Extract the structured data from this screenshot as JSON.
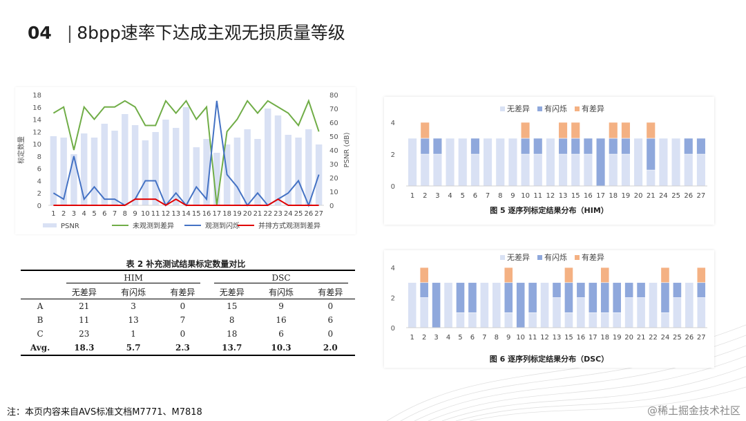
{
  "title": {
    "number": "04",
    "separator": "|",
    "text": "8bpp速率下达成主观无损质量等级"
  },
  "footnote": "注：本页内容来自AVS标准文档M7771、M7818",
  "watermark": "@稀土掘金技术社区",
  "colors": {
    "psnr_bar": "#d9e1f4",
    "no_diff": "#d9e1f4",
    "flicker": "#8fa8dc",
    "diff": "#f4b183",
    "green": "#70ad47",
    "blue": "#4472c4",
    "red": "#e00000"
  },
  "chart_data": [
    {
      "type": "bar+line",
      "categories": [
        "1",
        "2",
        "3",
        "4",
        "5",
        "6",
        "7",
        "8",
        "9",
        "10",
        "11",
        "12",
        "13",
        "14",
        "15",
        "16",
        "17",
        "18",
        "19",
        "20",
        "21",
        "22",
        "23",
        "24",
        "25",
        "26",
        "27"
      ],
      "ylabel": "标定数量",
      "y2label": "PSNR (dB)",
      "ylim": [
        0,
        18
      ],
      "yticks": [
        "0",
        "2",
        "4",
        "6",
        "8",
        "10",
        "12",
        "14",
        "16",
        "18"
      ],
      "y2lim": [
        0,
        80
      ],
      "y2ticks": [
        "0",
        "10",
        "20",
        "30",
        "40",
        "50",
        "60",
        "70",
        "80"
      ],
      "series": [
        {
          "name": "PSNR",
          "kind": "bar",
          "axis": "y2",
          "values": [
            50,
            49,
            37,
            52,
            49,
            59,
            54,
            66,
            58,
            47,
            53,
            62,
            56,
            71,
            42,
            48,
            38,
            44,
            49,
            55,
            48,
            70,
            65,
            51,
            49,
            55,
            44
          ]
        },
        {
          "name": "未观测到差异",
          "kind": "line",
          "axis": "y",
          "values": [
            15,
            16,
            9,
            16,
            14,
            16,
            16,
            17,
            16,
            13,
            13,
            17,
            15,
            17,
            14,
            16,
            0,
            12,
            14,
            17,
            15,
            17,
            16,
            15,
            13,
            17,
            12
          ]
        },
        {
          "name": "观测到闪烁",
          "kind": "line",
          "axis": "y",
          "values": [
            2,
            1,
            8,
            1,
            3,
            1,
            1,
            0,
            1,
            4,
            4,
            0,
            2,
            0,
            3,
            1,
            17,
            5,
            3,
            0,
            2,
            0,
            1,
            2,
            4,
            0,
            5
          ]
        },
        {
          "name": "并排方式观测到差异",
          "kind": "line",
          "axis": "y",
          "values": [
            0,
            0,
            0,
            0,
            0,
            0,
            0,
            0,
            1,
            1,
            1,
            0,
            1,
            0,
            0,
            0,
            0,
            0,
            0,
            0,
            0,
            0,
            1,
            0,
            0,
            0,
            0
          ]
        }
      ]
    },
    {
      "type": "stacked-bar",
      "caption": "图 5  逐序列标定结果分布（HIM）",
      "categories": [
        "1",
        "2",
        "3",
        "4",
        "5",
        "6",
        "7",
        "8",
        "9",
        "10",
        "11",
        "12",
        "13",
        "15",
        "16",
        "17",
        "18",
        "19",
        "20",
        "21",
        "24",
        "25",
        "26",
        "27"
      ],
      "ylim": [
        0,
        4
      ],
      "yticks": [
        "0",
        "2",
        "4"
      ],
      "legend": [
        "无差异",
        "有闪烁",
        "有差异"
      ],
      "series": [
        {
          "name": "无差异",
          "values": [
            3,
            2,
            2,
            3,
            3,
            2,
            3,
            3,
            3,
            2,
            2,
            3,
            2,
            2,
            2,
            0,
            2,
            2,
            3,
            1,
            3,
            3,
            2,
            2
          ]
        },
        {
          "name": "有闪烁",
          "values": [
            0,
            1,
            1,
            0,
            0,
            1,
            0,
            0,
            0,
            1,
            1,
            0,
            1,
            1,
            1,
            3,
            1,
            1,
            0,
            2,
            0,
            0,
            1,
            1
          ]
        },
        {
          "name": "有差异",
          "values": [
            0,
            1,
            0,
            0,
            0,
            0,
            0,
            0,
            0,
            1,
            0,
            0,
            1,
            1,
            0,
            0,
            1,
            1,
            0,
            1,
            0,
            0,
            0,
            0
          ]
        }
      ]
    },
    {
      "type": "stacked-bar",
      "caption": "图 6  逐序列标定结果分布（DSC）",
      "categories": [
        "1",
        "2",
        "3",
        "4",
        "5",
        "6",
        "7",
        "8",
        "9",
        "10",
        "11",
        "12",
        "13",
        "15",
        "16",
        "17",
        "18",
        "19",
        "20",
        "21",
        "22",
        "24",
        "25",
        "26",
        "27"
      ],
      "ylim": [
        0,
        4
      ],
      "yticks": [
        "0",
        "2",
        "4"
      ],
      "legend": [
        "无差异",
        "有闪烁",
        "有差异"
      ],
      "series": [
        {
          "name": "无差异",
          "values": [
            3,
            2,
            0,
            3,
            1,
            1,
            3,
            3,
            1,
            0,
            1,
            3,
            2,
            1,
            2,
            1,
            1,
            1,
            2,
            2,
            3,
            1,
            2,
            3,
            2
          ]
        },
        {
          "name": "有闪烁",
          "values": [
            0,
            1,
            3,
            0,
            2,
            2,
            0,
            0,
            2,
            3,
            2,
            0,
            1,
            2,
            1,
            2,
            2,
            2,
            1,
            1,
            0,
            2,
            1,
            0,
            1
          ]
        },
        {
          "name": "有差异",
          "values": [
            0,
            1,
            0,
            0,
            0,
            0,
            0,
            0,
            1,
            0,
            0,
            0,
            0,
            1,
            0,
            0,
            1,
            0,
            0,
            0,
            0,
            1,
            0,
            0,
            1
          ]
        }
      ]
    }
  ],
  "table": {
    "caption": "表 2  补充测试结果标定数量对比",
    "groups": [
      "HIM",
      "DSC"
    ],
    "columns": [
      "无差异",
      "有闪烁",
      "有差异",
      "无差异",
      "有闪烁",
      "有差异"
    ],
    "rows": [
      {
        "label": "A",
        "values": [
          "21",
          "3",
          "0",
          "15",
          "9",
          "0"
        ]
      },
      {
        "label": "B",
        "values": [
          "11",
          "13",
          "7",
          "8",
          "16",
          "6"
        ]
      },
      {
        "label": "C",
        "values": [
          "23",
          "1",
          "0",
          "18",
          "6",
          "0"
        ]
      },
      {
        "label": "Avg.",
        "values": [
          "18.3",
          "5.7",
          "2.3",
          "13.7",
          "10.3",
          "2.0"
        ]
      }
    ]
  }
}
